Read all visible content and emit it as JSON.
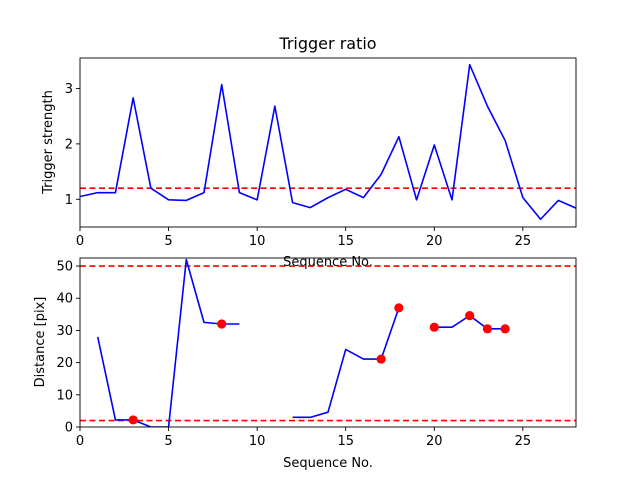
{
  "chart_data": [
    {
      "type": "line",
      "title": "Trigger ratio",
      "xlabel": "Sequence No.",
      "ylabel": "Trigger strength",
      "xlim": [
        0,
        28
      ],
      "ylim": [
        0.5,
        3.55
      ],
      "xticks": [
        0,
        5,
        10,
        15,
        20,
        25
      ],
      "yticks": [
        1,
        2,
        3
      ],
      "grid": false,
      "series": [
        {
          "color": "#0000ff",
          "x": [
            0,
            1,
            2,
            3,
            4,
            5,
            6,
            7,
            8,
            9,
            10,
            11,
            12,
            13,
            14,
            15,
            16,
            17,
            18,
            19,
            20,
            21,
            22,
            23,
            24,
            25,
            26,
            27,
            28
          ],
          "y": [
            1.05,
            1.12,
            1.12,
            2.83,
            1.2,
            0.99,
            0.98,
            1.12,
            3.07,
            1.12,
            0.99,
            2.68,
            0.94,
            0.85,
            1.03,
            1.18,
            1.03,
            1.45,
            2.13,
            0.99,
            1.98,
            0.99,
            3.43,
            2.68,
            2.06,
            1.03,
            0.64,
            0.98,
            0.84
          ]
        }
      ],
      "hlines": [
        {
          "y": 1.2,
          "color": "#ff0000",
          "style": "dashed"
        }
      ]
    },
    {
      "type": "line",
      "title": "",
      "xlabel": "Sequence No.",
      "ylabel": "Distance [pix]",
      "xlim": [
        0,
        28
      ],
      "ylim": [
        0,
        52.5
      ],
      "xticks": [
        0,
        5,
        10,
        15,
        20,
        25
      ],
      "yticks": [
        0,
        10,
        20,
        30,
        40,
        50
      ],
      "grid": false,
      "series": [
        {
          "color": "#0000ff",
          "x": [
            0,
            1,
            2,
            3,
            4,
            5,
            6,
            7,
            8,
            9,
            10,
            11,
            12,
            13,
            14,
            15,
            16,
            17,
            18,
            19,
            20,
            21,
            22,
            23,
            24,
            25,
            26,
            27,
            28
          ],
          "y": [
            null,
            28,
            2.2,
            2.2,
            0,
            0,
            52,
            32.5,
            32,
            32,
            null,
            null,
            3,
            3,
            4.6,
            24.1,
            21.1,
            21.1,
            37,
            null,
            31,
            31,
            34.6,
            30.5,
            30.5,
            null,
            null,
            null,
            null
          ]
        }
      ],
      "markers": {
        "color": "#ff0000",
        "x": [
          3,
          8,
          17,
          18,
          20,
          22,
          23,
          24
        ],
        "y": [
          2.2,
          32,
          21.1,
          37,
          31,
          34.6,
          30.5,
          30.5
        ]
      },
      "hlines": [
        {
          "y": 50,
          "color": "#ff0000",
          "style": "dashed"
        },
        {
          "y": 2,
          "color": "#ff0000",
          "style": "dashed"
        }
      ]
    }
  ]
}
